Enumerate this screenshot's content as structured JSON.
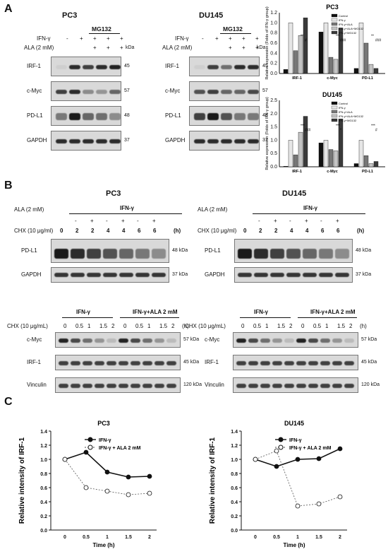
{
  "panels": {
    "a": "A",
    "b": "B",
    "c": "C"
  },
  "A": {
    "pc3_title": "PC3",
    "du145_title": "DU145",
    "mg132": "MG132",
    "ifn": "IFN-γ",
    "ala": "ALA (2 mM)",
    "kda": "kDa",
    "rows": [
      {
        "label": "IRF-1",
        "kda": "45"
      },
      {
        "label": "c-Myc",
        "kda": "57"
      },
      {
        "label": "PD-L1",
        "kda": "48"
      },
      {
        "label": "GAPDH",
        "kda": "37"
      }
    ],
    "signs": {
      "ifn": [
        "-",
        "+",
        "+",
        "+",
        "+"
      ],
      "ala": [
        "",
        "",
        "+",
        "+",
        "+"
      ]
    }
  },
  "B": {
    "pc3_title": "PC3",
    "du145_title": "DU145",
    "ala": "ALA (2 mM)",
    "ifn": "IFN-γ",
    "chx": "CHX (10 μg/ml)",
    "h": "(h)",
    "ala_signs": [
      "-",
      "+",
      "-",
      "+",
      "-",
      "+"
    ],
    "times": [
      "0",
      "2",
      "2",
      "4",
      "4",
      "6",
      "6"
    ],
    "pd_rows": [
      {
        "label": "PD-L1",
        "kda": "48 kDa"
      },
      {
        "label": "GAPDH",
        "kda": "37 kDa"
      }
    ],
    "ifn_group": "IFN-γ",
    "ifn_ala_group": "IFN-γ+ALA 2 mM",
    "chx2": "CHX (10 μg/mL)",
    "times2": [
      "0",
      "0.5",
      "1",
      "1.5",
      "2",
      "0",
      "0.5",
      "1",
      "1.5",
      "2"
    ],
    "bot_rows": [
      {
        "label": "c-Myc",
        "kda": "57 kDa"
      },
      {
        "label": "IRF-1",
        "kda": "45 kDa"
      },
      {
        "label": "Vinculin",
        "kda": "120 kDa"
      }
    ]
  },
  "chart_data": [
    {
      "type": "bar",
      "title": "PC3",
      "ylabel": "Relative expression (Folds of IFN-γ group)",
      "categories": [
        "IRF-1",
        "c-Myc",
        "PD-L1"
      ],
      "ylim": [
        0,
        1.2
      ],
      "legend": [
        "Control",
        "IFN-γ",
        "IFN-γ+ALA",
        "IFN-γ+ALA+MG132",
        "IFN-γ+MG132"
      ],
      "series": [
        {
          "name": "Control",
          "values": [
            0.08,
            0.82,
            0.1
          ]
        },
        {
          "name": "IFN-γ",
          "values": [
            1.0,
            1.0,
            1.0
          ]
        },
        {
          "name": "IFN-γ+ALA",
          "values": [
            0.45,
            0.32,
            0.6
          ]
        },
        {
          "name": "IFN-γ+ALA+MG132",
          "values": [
            0.75,
            0.28,
            0.18
          ]
        },
        {
          "name": "IFN-γ+MG132",
          "values": [
            1.1,
            0.9,
            0.1
          ]
        }
      ],
      "annotations": [
        "**",
        "#",
        "***",
        "###",
        "**",
        "###"
      ],
      "yticks": [
        "0.0",
        "0.2",
        "0.4",
        "0.6",
        "0.8",
        "1.0",
        "1.2"
      ]
    },
    {
      "type": "bar",
      "title": "DU145",
      "ylabel": "Relative expression (Folds of IFN-γ group)",
      "categories": [
        "IRF-1",
        "c-Myc",
        "PD-L1"
      ],
      "ylim": [
        0,
        2.5
      ],
      "legend": [
        "Control",
        "IFN-γ",
        "IFN-γ+ALA",
        "IFN-γ+ALA+MG132",
        "IFN-γ+MG132"
      ],
      "series": [
        {
          "name": "Control",
          "values": [
            0.02,
            0.9,
            0.12
          ]
        },
        {
          "name": "IFN-γ",
          "values": [
            1.0,
            1.0,
            1.0
          ]
        },
        {
          "name": "IFN-γ+ALA",
          "values": [
            0.45,
            0.65,
            0.42
          ]
        },
        {
          "name": "IFN-γ+ALA+MG132",
          "values": [
            1.3,
            0.6,
            0.12
          ]
        },
        {
          "name": "IFN-γ+MG132",
          "values": [
            1.9,
            1.8,
            0.2
          ]
        }
      ],
      "annotations": [
        "***",
        "###",
        "***",
        "*",
        "***",
        "#"
      ],
      "yticks": [
        "0.0",
        "0.5",
        "1.0",
        "1.5",
        "2.0",
        "2.5"
      ]
    },
    {
      "type": "line",
      "title": "PC3",
      "xlabel": "Time (h)",
      "ylabel": "Relative intensity of IRF-1",
      "ylim": [
        0,
        1.4
      ],
      "x": [
        0,
        0.5,
        1,
        1.5,
        2
      ],
      "series": [
        {
          "name": "IFN-γ",
          "values": [
            1.0,
            1.1,
            0.82,
            0.75,
            0.76
          ]
        },
        {
          "name": "IFN-γ + ALA 2 mM",
          "values": [
            1.0,
            0.6,
            0.55,
            0.5,
            0.52
          ]
        }
      ],
      "yticks": [
        "0.0",
        "0.2",
        "0.4",
        "0.6",
        "0.8",
        "1.0",
        "1.2",
        "1.4"
      ],
      "xticks": [
        "0",
        "0.5",
        "1",
        "1.5",
        "2"
      ]
    },
    {
      "type": "line",
      "title": "DU145",
      "xlabel": "Time (h)",
      "ylabel": "Relative intensity of IRF-1",
      "ylim": [
        0,
        1.4
      ],
      "x": [
        0,
        0.5,
        1,
        1.5,
        2
      ],
      "series": [
        {
          "name": "IFN-γ",
          "values": [
            1.0,
            0.9,
            1.0,
            1.01,
            1.15
          ]
        },
        {
          "name": "IFN-γ + ALA 2 mM",
          "values": [
            1.0,
            1.12,
            0.34,
            0.37,
            0.47
          ]
        }
      ],
      "yticks": [
        "0.0",
        "0.2",
        "0.4",
        "0.6",
        "0.8",
        "1.0",
        "1.2",
        "1.4"
      ],
      "xticks": [
        "0",
        "0.5",
        "1",
        "1.5",
        "2"
      ]
    }
  ]
}
